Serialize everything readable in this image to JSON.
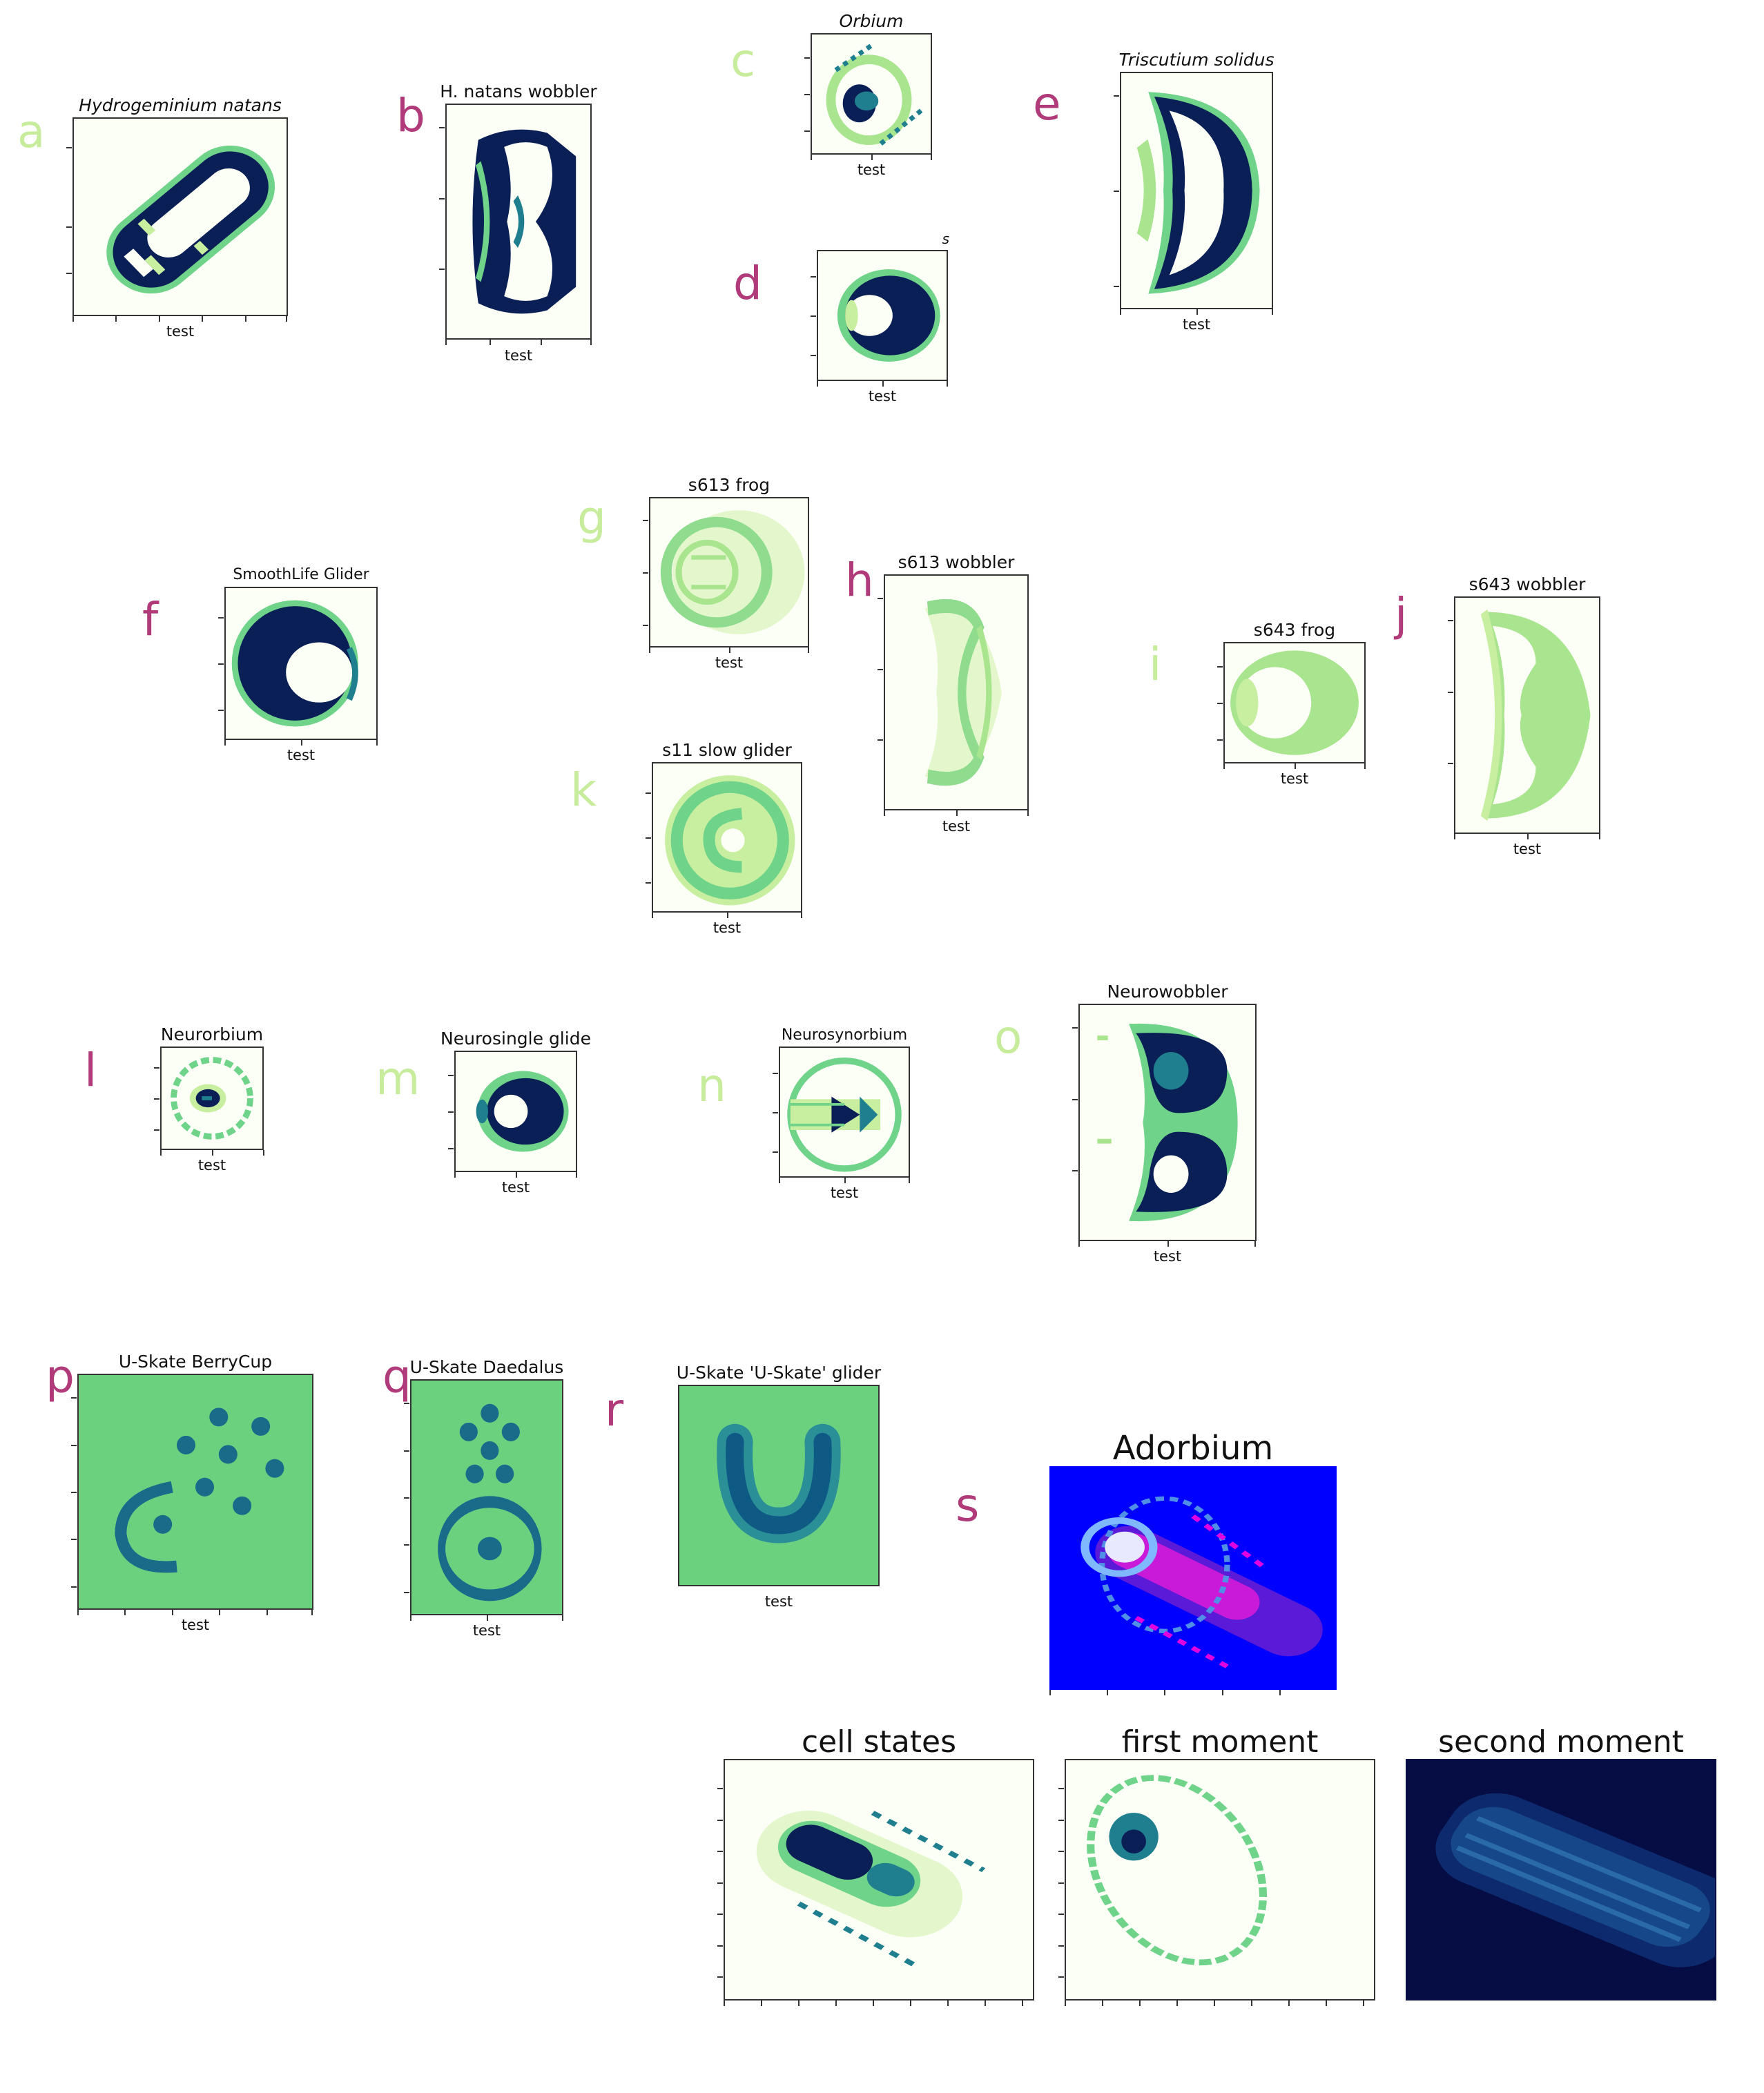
{
  "letters": {
    "a": "a",
    "b": "b",
    "c": "c",
    "d": "d",
    "e": "e",
    "f": "f",
    "g": "g",
    "h": "h",
    "i": "i",
    "j": "j",
    "k": "k",
    "l": "l",
    "m": "m",
    "n": "n",
    "o": "o",
    "p": "p",
    "q": "q",
    "r": "r",
    "s": "s"
  },
  "panels": {
    "a": {
      "title": "Hydrogeminium natans",
      "xlabel": "test"
    },
    "b": {
      "title": "H.  natans wobbler",
      "xlabel": "test"
    },
    "c": {
      "title": "Orbium",
      "xlabel": "test"
    },
    "d": {
      "title": "s",
      "xlabel": "test"
    },
    "e": {
      "title": "Triscutium solidus",
      "xlabel": "test"
    },
    "f": {
      "title": "SmoothLife Glider",
      "xlabel": "test"
    },
    "g": {
      "title": "s613 frog",
      "xlabel": "test"
    },
    "h": {
      "title": "s613 wobbler",
      "xlabel": "test"
    },
    "i": {
      "title": "s643 frog",
      "xlabel": "test"
    },
    "j": {
      "title": "s643 wobbler",
      "xlabel": "test"
    },
    "k": {
      "title": "s11 slow glider",
      "xlabel": "test"
    },
    "l": {
      "title": "Neurorbium",
      "xlabel": "test"
    },
    "m": {
      "title": "Neurosingle glide",
      "xlabel": "test"
    },
    "n": {
      "title": "Neurosynorbium",
      "xlabel": "test"
    },
    "o": {
      "title": "Neurowobbler",
      "xlabel": "test"
    },
    "p": {
      "title": "U-Skate BerryCup",
      "xlabel": "test"
    },
    "q": {
      "title": "U-Skate Daedalus",
      "xlabel": "test"
    },
    "r": {
      "title": "U-Skate 'U-Skate' glider",
      "xlabel": "test"
    },
    "s": {
      "title": "Adorbium"
    },
    "s1": {
      "title": "cell states"
    },
    "s2": {
      "title": "first moment"
    },
    "s3": {
      "title": "second moment"
    }
  },
  "colors": {
    "letter_magenta": "#b03a7a",
    "letter_lime": "#c6ec9c",
    "cmap_dark": "#0b1f57",
    "cmap_teal": "#1f7f8f",
    "cmap_green": "#6fd38a",
    "cmap_light": "#c8efa0",
    "cmap_bg": "#fcfff6",
    "uskate_bg": "#6cd17f",
    "adorbium_bg": "#0000ff",
    "moment_bg": "#060c44"
  }
}
